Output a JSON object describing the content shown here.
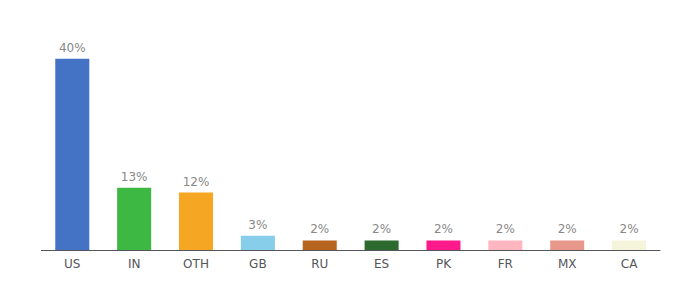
{
  "chart_data": {
    "type": "bar",
    "categories": [
      "US",
      "IN",
      "OTH",
      "GB",
      "RU",
      "ES",
      "PK",
      "FR",
      "MX",
      "CA"
    ],
    "values": [
      40,
      13,
      12,
      3,
      2,
      2,
      2,
      2,
      2,
      2
    ],
    "value_labels": [
      "40%",
      "13%",
      "12%",
      "3%",
      "2%",
      "2%",
      "2%",
      "2%",
      "2%",
      "2%"
    ],
    "data_labels": true,
    "colors": [
      "#4472c4",
      "#3cb843",
      "#f5a623",
      "#87ceeb",
      "#b5651d",
      "#2d6a2d",
      "#ff1a8c",
      "#ffb6c1",
      "#e8988a",
      "#f5f5dc"
    ],
    "ylim": [
      0,
      46
    ],
    "grid": false,
    "tick_labels": "x"
  }
}
